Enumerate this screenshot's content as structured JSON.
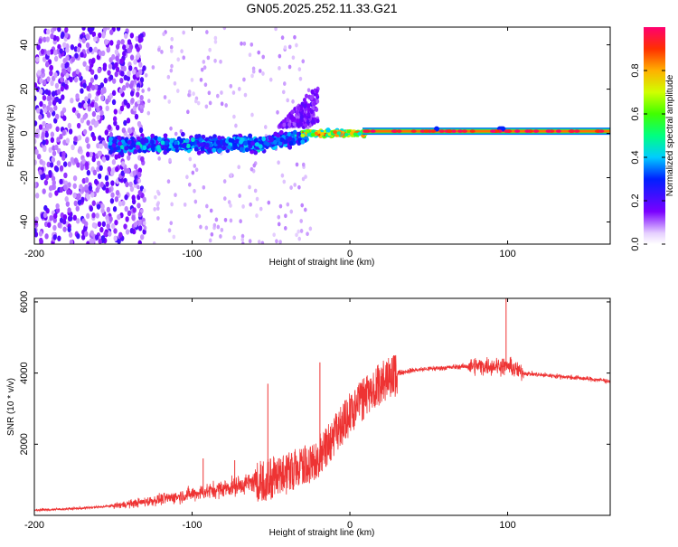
{
  "title": "GN05.2025.252.11.33.G21",
  "chart_data": [
    {
      "type": "heatmap",
      "xlabel": "Height of straight line (km)",
      "ylabel": "Frequency (Hz)",
      "xlim": [
        -200,
        165
      ],
      "ylim": [
        -50,
        48
      ],
      "xticks": [
        -200,
        -100,
        0,
        100
      ],
      "xtick_labels": [
        "-200",
        "-100",
        "0",
        "100"
      ],
      "yticks": [
        -40,
        -20,
        0,
        20,
        40
      ],
      "ytick_labels": [
        "-40",
        "-20",
        "0",
        "20",
        "40"
      ],
      "colorbar": {
        "label": "Normalized spectral amplitude",
        "range": [
          0,
          1
        ],
        "ticks": [
          0.0,
          0.2,
          0.4,
          0.6,
          0.8
        ],
        "tick_labels": [
          "0.0",
          "0.2",
          "0.4",
          "0.6",
          "0.8"
        ]
      },
      "regions": [
        {
          "name": "noise-scatter",
          "x_range": [
            -200,
            -130
          ],
          "freq_range": [
            -50,
            48
          ],
          "amplitude": "0.1-0.25"
        },
        {
          "name": "broadened-band",
          "x_range": [
            -150,
            -30
          ],
          "freq_center": -5,
          "freq_spread": 10,
          "amplitude": "0.2-0.45"
        },
        {
          "name": "converging-band",
          "x_range": [
            -30,
            10
          ],
          "freq_center": 0,
          "amplitude": "0.5-1.0"
        },
        {
          "name": "stable-line",
          "x_range": [
            10,
            165
          ],
          "freq_center": 1,
          "amplitude": "1.0"
        }
      ]
    },
    {
      "type": "line",
      "xlabel": "Height of straight line (km)",
      "ylabel": "SNR (10 * v/v)",
      "xlim": [
        -200,
        165
      ],
      "ylim": [
        0,
        6100
      ],
      "xticks": [
        -200,
        -100,
        0,
        100
      ],
      "xtick_labels": [
        "-200",
        "-100",
        "0",
        "100"
      ],
      "yticks": [
        2000,
        4000,
        6000
      ],
      "ytick_labels": [
        "2000",
        "4000",
        "6000"
      ],
      "color": "#ee3333",
      "series": [
        {
          "name": "SNR",
          "x": [
            -200,
            -190,
            -180,
            -170,
            -160,
            -150,
            -140,
            -130,
            -120,
            -110,
            -100,
            -90,
            -80,
            -70,
            -60,
            -50,
            -40,
            -30,
            -20,
            -15,
            -10,
            -5,
            0,
            5,
            10,
            15,
            20,
            25,
            30,
            40,
            50,
            60,
            70,
            80,
            90,
            95,
            100,
            105,
            110,
            120,
            130,
            140,
            150,
            160,
            165
          ],
          "y": [
            150,
            160,
            180,
            200,
            230,
            270,
            320,
            380,
            450,
            520,
            600,
            680,
            760,
            850,
            960,
            1100,
            1250,
            1400,
            1700,
            2000,
            2300,
            2600,
            2900,
            3150,
            3400,
            3620,
            3800,
            3920,
            4000,
            4080,
            4120,
            4150,
            4180,
            4200,
            4200,
            4200,
            4200,
            4100,
            4000,
            3950,
            3920,
            3880,
            3840,
            3800,
            3760
          ]
        }
      ],
      "spikes": [
        {
          "x": -93,
          "y": 1600
        },
        {
          "x": -73,
          "y": 1550
        },
        {
          "x": -52,
          "y": 3700
        },
        {
          "x": -19,
          "y": 4300
        },
        {
          "x": 99,
          "y": 6100
        }
      ]
    }
  ]
}
